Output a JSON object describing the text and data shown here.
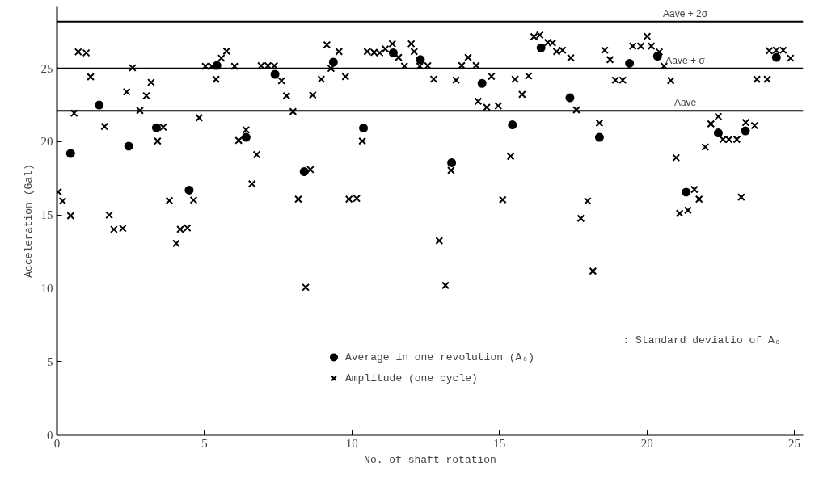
{
  "chart_data": {
    "type": "scatter",
    "xlabel": "No. of shaft rotation",
    "ylabel": "Acceleration (Gal)",
    "xlim": [
      0,
      25.3
    ],
    "ylim": [
      0,
      29.2
    ],
    "xticks": [
      0,
      5,
      10,
      15,
      20,
      25
    ],
    "yticks": [
      0,
      5,
      10,
      15,
      20,
      25
    ],
    "grid": false,
    "legend": "bottom",
    "series": [
      {
        "name": "Average in one revolution (A₀)",
        "color": "#000000",
        "marker": "circle",
        "x": [
          0.46,
          1.43,
          2.43,
          3.37,
          4.48,
          5.42,
          6.41,
          7.39,
          8.38,
          9.37,
          10.39,
          11.4,
          12.32,
          13.38,
          14.41,
          15.44,
          16.41,
          17.39,
          18.39,
          19.41,
          20.36,
          21.33,
          22.42,
          23.34,
          24.39
        ],
        "values": [
          19.2,
          22.5,
          19.7,
          20.95,
          16.7,
          25.2,
          20.3,
          24.6,
          17.96,
          25.43,
          20.93,
          26.06,
          25.6,
          18.57,
          23.98,
          21.15,
          26.4,
          23.0,
          20.3,
          25.35,
          25.84,
          16.56,
          20.6,
          20.74,
          25.75
        ]
      },
      {
        "name": "Amplitude (one cycle)",
        "color": "#000000",
        "marker": "cross",
        "x": [
          0.04,
          0.19,
          0.46,
          0.58,
          0.72,
          0.99,
          1.14,
          1.61,
          1.77,
          1.93,
          2.23,
          2.36,
          2.56,
          2.81,
          3.03,
          3.19,
          3.41,
          3.6,
          3.81,
          4.04,
          4.18,
          4.42,
          4.63,
          4.82,
          5.03,
          5.25,
          5.39,
          5.57,
          5.75,
          6.02,
          6.16,
          6.41,
          6.61,
          6.77,
          6.92,
          7.15,
          7.37,
          7.61,
          7.78,
          8.0,
          8.18,
          8.43,
          8.59,
          8.67,
          8.96,
          9.15,
          9.29,
          9.56,
          9.78,
          9.9,
          10.16,
          10.35,
          10.52,
          10.75,
          10.94,
          11.13,
          11.37,
          11.58,
          11.78,
          12.01,
          12.11,
          12.3,
          12.57,
          12.77,
          12.96,
          13.17,
          13.36,
          13.53,
          13.72,
          13.94,
          14.21,
          14.28,
          14.57,
          14.73,
          14.96,
          15.11,
          15.38,
          15.53,
          15.77,
          15.99,
          16.17,
          16.37,
          16.64,
          16.8,
          16.94,
          17.14,
          17.42,
          17.61,
          17.76,
          17.99,
          18.17,
          18.39,
          18.57,
          18.75,
          18.93,
          19.18,
          19.52,
          19.79,
          20.01,
          20.15,
          20.42,
          20.58,
          20.81,
          20.99,
          21.11,
          21.39,
          21.61,
          21.77,
          21.98,
          22.17,
          22.42,
          22.58,
          22.78,
          23.05,
          23.2,
          23.35,
          23.65,
          23.73,
          24.08,
          24.15,
          24.38,
          24.62,
          24.87
        ],
        "values": [
          16.58,
          15.95,
          14.95,
          21.94,
          26.13,
          26.06,
          24.43,
          21.04,
          15.0,
          14.02,
          14.09,
          23.4,
          25.04,
          22.13,
          23.14,
          24.05,
          20.05,
          20.99,
          15.98,
          13.06,
          14.03,
          14.12,
          16.02,
          21.63,
          25.14,
          25.14,
          24.26,
          25.7,
          26.18,
          25.14,
          20.09,
          20.81,
          17.13,
          19.12,
          25.18,
          25.18,
          25.18,
          24.16,
          23.13,
          22.06,
          16.08,
          10.07,
          18.1,
          23.19,
          24.27,
          26.61,
          25.0,
          26.15,
          24.44,
          16.08,
          16.13,
          20.05,
          26.15,
          26.09,
          26.06,
          26.33,
          26.68,
          25.75,
          25.16,
          26.68,
          26.15,
          25.16,
          25.18,
          24.27,
          13.24,
          10.2,
          18.05,
          24.2,
          25.2,
          25.75,
          25.2,
          22.76,
          22.35,
          24.46,
          22.44,
          16.04,
          19.0,
          24.27,
          23.23,
          24.49,
          27.17,
          27.28,
          26.77,
          26.74,
          26.15,
          26.24,
          25.72,
          22.17,
          14.77,
          15.95,
          11.18,
          21.27,
          26.24,
          25.6,
          24.2,
          24.2,
          26.52,
          26.52,
          27.19,
          26.52,
          26.13,
          25.16,
          24.17,
          18.91,
          15.12,
          15.32,
          16.74,
          16.08,
          19.64,
          21.22,
          21.72,
          20.16,
          20.16,
          20.16,
          16.22,
          21.31,
          21.1,
          24.26,
          24.26,
          26.2,
          26.24,
          26.24,
          25.7
        ]
      }
    ],
    "ref_lines": [
      {
        "axis": "y",
        "value": 28.2,
        "label": "Aave + 2σ"
      },
      {
        "axis": "y",
        "value": 25.0,
        "label": "Aave + σ"
      },
      {
        "axis": "y",
        "value": 22.1,
        "label": "Aave"
      }
    ],
    "annotations": [
      ": Standard deviatio of A₀"
    ]
  }
}
